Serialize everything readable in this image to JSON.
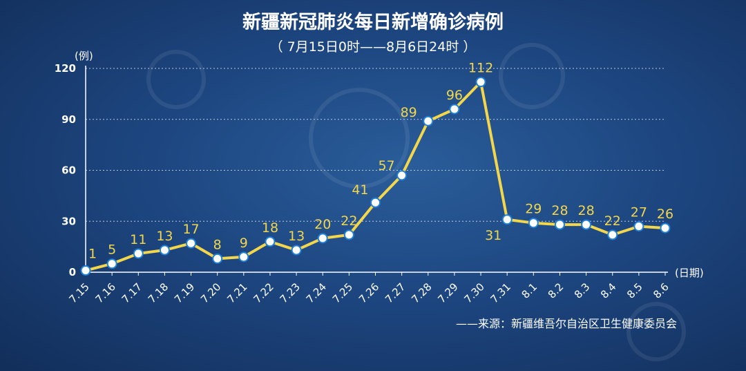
{
  "chart_data": {
    "type": "line",
    "title": "新疆新冠肺炎每日新增确诊病例",
    "subtitle": "（ 7月15日0时——8月6日24时 ）",
    "ylabel": "(例)",
    "xlabel": "(日期)",
    "categories": [
      "7.15",
      "7.16",
      "7.17",
      "7.18",
      "7.19",
      "7.20",
      "7.21",
      "7.22",
      "7.23",
      "7.24",
      "7.25",
      "7.26",
      "7.27",
      "7.28",
      "7.29",
      "7.30",
      "7.31",
      "8.1",
      "8.2",
      "8.3",
      "8.4",
      "8.5",
      "8.6"
    ],
    "series": [
      {
        "values": [
          1,
          5,
          11,
          13,
          17,
          8,
          9,
          18,
          13,
          20,
          22,
          41,
          57,
          89,
          96,
          112,
          31,
          29,
          28,
          28,
          22,
          27,
          26
        ]
      }
    ],
    "yticks": [
      0,
      30,
      60,
      90,
      120
    ],
    "ylim": [
      0,
      120
    ],
    "grid": true,
    "line_color": "#f2d64b",
    "marker_fill": "#ffffff",
    "marker_stroke": "#1f7fd6",
    "source": "——来源：新疆维吾尔自治区卫生健康委员会"
  }
}
